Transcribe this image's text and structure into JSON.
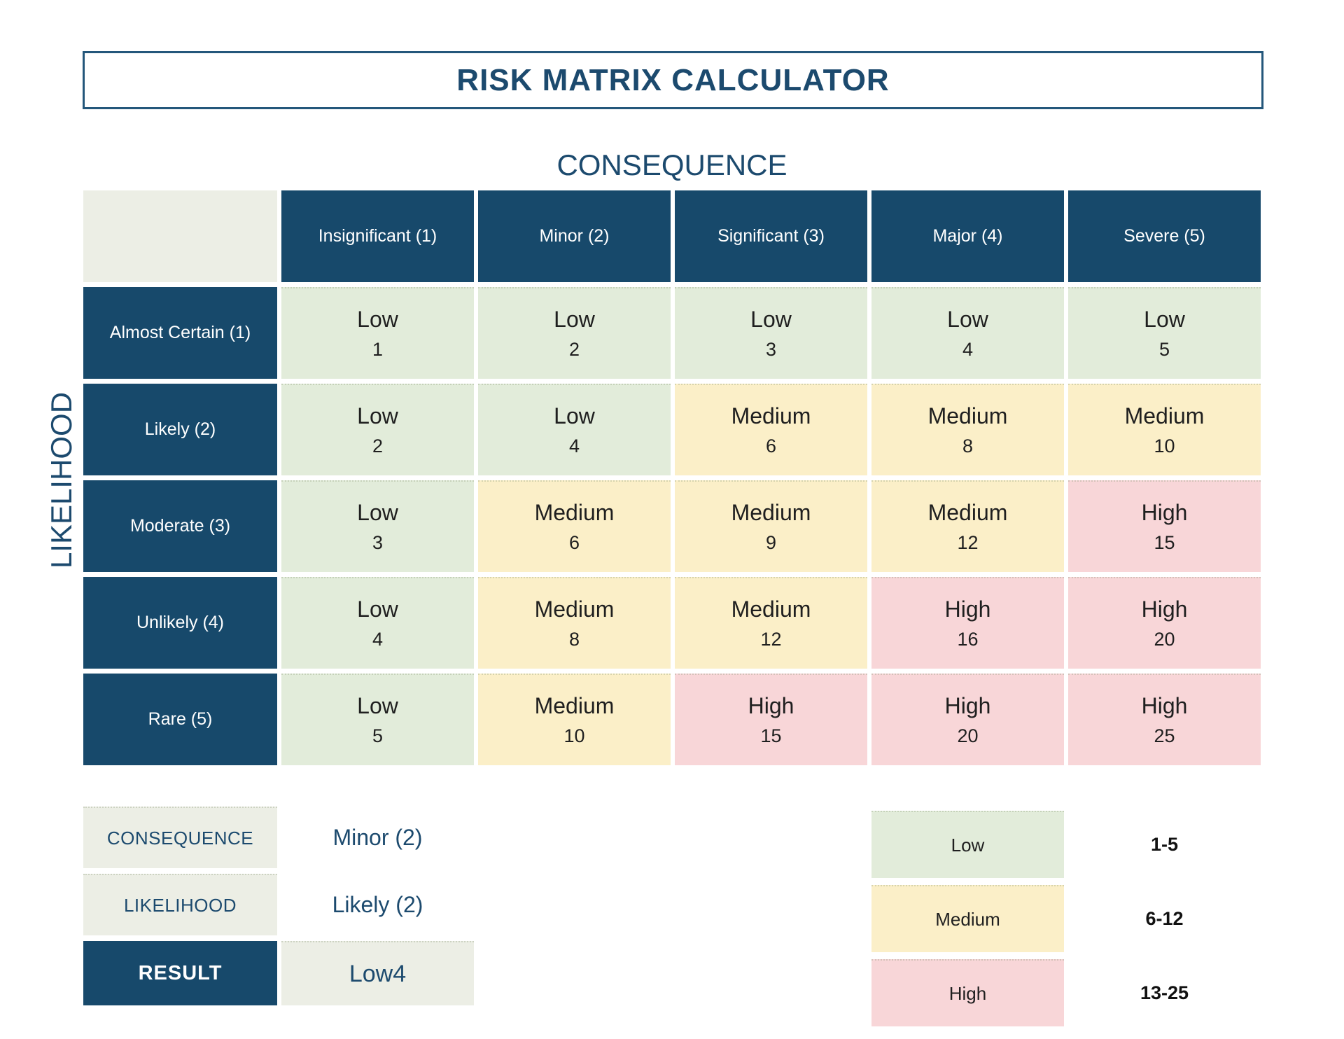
{
  "title": "RISK MATRIX CALCULATOR",
  "colors": {
    "navy": "#17496B",
    "border_navy": "#24577B",
    "text_navy": "#1C4A6E",
    "text_dark": "#1F1F1F",
    "panel_gray": "#ECEEE5",
    "low": "#E2ECDA",
    "medium": "#FBEFC8",
    "high": "#F8D6D8"
  },
  "chart_data": {
    "type": "heatmap",
    "title": "RISK MATRIX CALCULATOR",
    "x_axis_label": "CONSEQUENCE",
    "y_axis_label": "LIKELIHOOD",
    "columns": [
      "Insignificant (1)",
      "Minor (2)",
      "Significant (3)",
      "Major (4)",
      "Severe (5)"
    ],
    "rows": [
      {
        "label": "Almost Certain (1)",
        "cells": [
          {
            "level": "Low",
            "score": 1
          },
          {
            "level": "Low",
            "score": 2
          },
          {
            "level": "Low",
            "score": 3
          },
          {
            "level": "Low",
            "score": 4
          },
          {
            "level": "Low",
            "score": 5
          }
        ]
      },
      {
        "label": "Likely (2)",
        "cells": [
          {
            "level": "Low",
            "score": 2
          },
          {
            "level": "Low",
            "score": 4
          },
          {
            "level": "Medium",
            "score": 6
          },
          {
            "level": "Medium",
            "score": 8
          },
          {
            "level": "Medium",
            "score": 10
          }
        ]
      },
      {
        "label": "Moderate (3)",
        "cells": [
          {
            "level": "Low",
            "score": 3
          },
          {
            "level": "Medium",
            "score": 6
          },
          {
            "level": "Medium",
            "score": 9
          },
          {
            "level": "Medium",
            "score": 12
          },
          {
            "level": "High",
            "score": 15
          }
        ]
      },
      {
        "label": "Unlikely (4)",
        "cells": [
          {
            "level": "Low",
            "score": 4
          },
          {
            "level": "Medium",
            "score": 8
          },
          {
            "level": "Medium",
            "score": 12
          },
          {
            "level": "High",
            "score": 16
          },
          {
            "level": "High",
            "score": 20
          }
        ]
      },
      {
        "label": "Rare (5)",
        "cells": [
          {
            "level": "Low",
            "score": 5
          },
          {
            "level": "Medium",
            "score": 10
          },
          {
            "level": "High",
            "score": 15
          },
          {
            "level": "High",
            "score": 20
          },
          {
            "level": "High",
            "score": 25
          }
        ]
      }
    ],
    "legend": [
      {
        "level": "Low",
        "range": "1-5"
      },
      {
        "level": "Medium",
        "range": "6-12"
      },
      {
        "level": "High",
        "range": "13-25"
      }
    ],
    "legend_position": "bottom-right",
    "grid": false
  },
  "calculator": {
    "consequence_label": "CONSEQUENCE",
    "consequence_value": "Minor (2)",
    "likelihood_label": "LIKELIHOOD",
    "likelihood_value": "Likely (2)",
    "result_label": "RESULT",
    "result_value": "Low4"
  }
}
